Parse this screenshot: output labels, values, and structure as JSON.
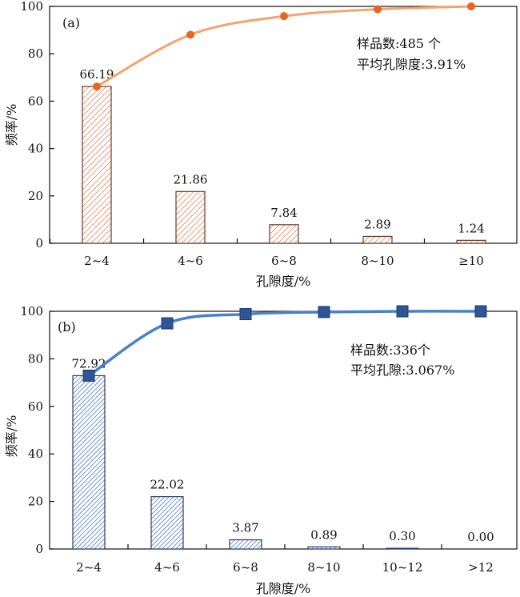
{
  "chart_data": [
    {
      "type": "bar",
      "panel_label": "(a)",
      "categories": [
        "2~4",
        "4~6",
        "6~8",
        "8~10",
        "≥10"
      ],
      "values": [
        66.19,
        21.86,
        7.84,
        2.89,
        1.24
      ],
      "value_labels": [
        "66.19",
        "21.86",
        "7.84",
        "2.89",
        "1.24"
      ],
      "cumulative": [
        66.19,
        88.05,
        95.89,
        98.78,
        100.0
      ],
      "xlabel": "孔隙度/%",
      "ylabel": "频率/%",
      "ylim": [
        0,
        100
      ],
      "yticks": [
        "0",
        "20",
        "40",
        "60",
        "80",
        "100"
      ],
      "annotations": [
        "样品数:485 个",
        "平均孔隙度:3.91%"
      ],
      "colors": {
        "bar_stroke": "#6b3a28",
        "hatch": "#e8805a",
        "line": "#f5a36e",
        "marker": "#e8651f"
      }
    },
    {
      "type": "bar",
      "panel_label": "(b)",
      "categories": [
        "2~4",
        "4~6",
        "6~8",
        "8~10",
        "10~12",
        ">12"
      ],
      "values": [
        72.92,
        22.02,
        3.87,
        0.89,
        0.3,
        0.0
      ],
      "value_labels": [
        "72.92",
        "22.02",
        "3.87",
        "0.89",
        "0.30",
        "0.00"
      ],
      "cumulative": [
        72.92,
        94.94,
        98.81,
        99.7,
        100.0,
        100.0
      ],
      "xlabel": "孔隙度/%",
      "ylabel": "频率/%",
      "ylim": [
        0,
        100
      ],
      "yticks": [
        "0",
        "20",
        "40",
        "60",
        "80",
        "100"
      ],
      "annotations": [
        "样品数:336个",
        "平均孔隙:3.067%"
      ],
      "colors": {
        "bar_stroke": "#2c3e66",
        "hatch": "#4a78c8",
        "line": "#4a80c8",
        "marker": "#2f5597"
      }
    }
  ]
}
